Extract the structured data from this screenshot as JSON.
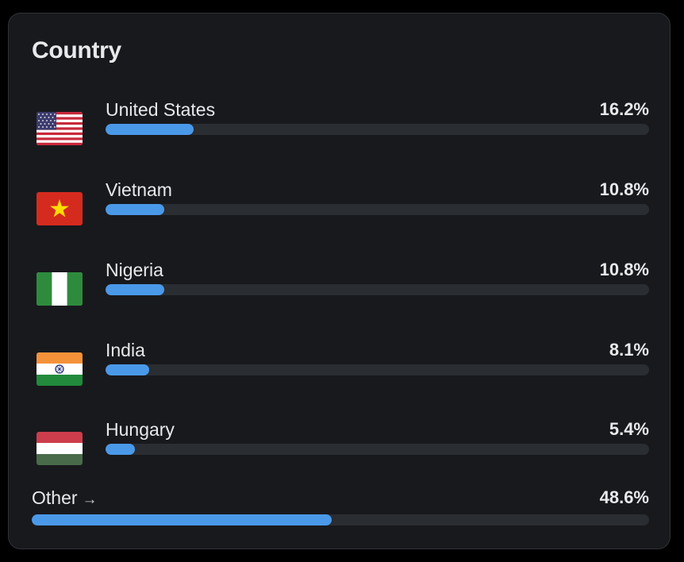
{
  "card": {
    "title": "Country"
  },
  "countries": [
    {
      "label": "United States",
      "pct_label": "16.2%",
      "value": 16.2,
      "flag_icon": "flag-us-icon"
    },
    {
      "label": "Vietnam",
      "pct_label": "10.8%",
      "value": 10.8,
      "flag_icon": "flag-vn-icon"
    },
    {
      "label": "Nigeria",
      "pct_label": "10.8%",
      "value": 10.8,
      "flag_icon": "flag-ng-icon"
    },
    {
      "label": "India",
      "pct_label": "8.1%",
      "value": 8.1,
      "flag_icon": "flag-in-icon"
    },
    {
      "label": "Hungary",
      "pct_label": "5.4%",
      "value": 5.4,
      "flag_icon": "flag-hu-icon"
    }
  ],
  "other": {
    "label": "Other",
    "arrow_icon": "arrow-right-icon",
    "pct_label": "48.6%",
    "value": 48.6
  },
  "colors": {
    "bar_fill": "#4a99e9",
    "bar_track": "#2a2d31",
    "card_bg": "#18191d"
  }
}
